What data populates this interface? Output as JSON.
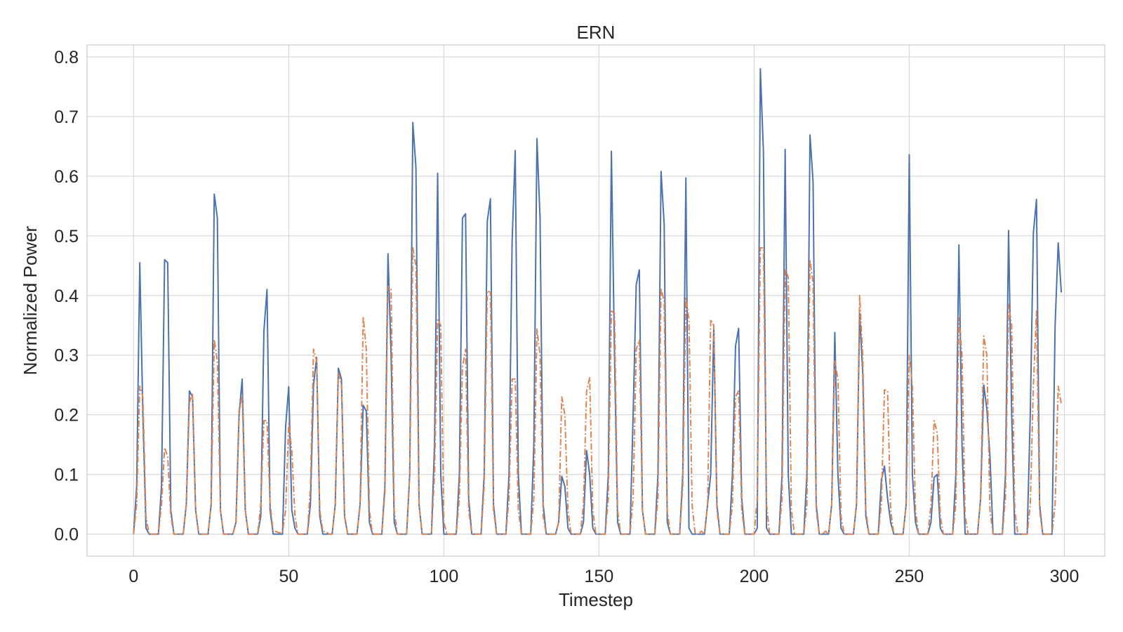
{
  "chart_data": {
    "type": "line",
    "title": "ERN",
    "xlabel": "Timestep",
    "ylabel": "Normalized Power",
    "xlim": [
      -15,
      313
    ],
    "ylim": [
      -0.037,
      0.82
    ],
    "xticks": [
      0,
      50,
      100,
      150,
      200,
      250,
      300
    ],
    "xtick_labels": [
      "0",
      "50",
      "100",
      "150",
      "200",
      "250",
      "300"
    ],
    "yticks": [
      0.0,
      0.1,
      0.2,
      0.3,
      0.4,
      0.5,
      0.6,
      0.7,
      0.8
    ],
    "ytick_labels": [
      "0.0",
      "0.1",
      "0.2",
      "0.3",
      "0.4",
      "0.5",
      "0.6",
      "0.7",
      "0.8"
    ],
    "grid": true,
    "legend": false,
    "colors": {
      "series_1": "#4c72b0",
      "series_2": "#dd8452",
      "grid": "#d9d9d9",
      "axes": "#cccccc"
    },
    "series": [
      {
        "style": "solid",
        "x": [
          0,
          1,
          2,
          3,
          4,
          5,
          6,
          7,
          8,
          9,
          10,
          11,
          12,
          13,
          14,
          15,
          16,
          17,
          18,
          19,
          20,
          21,
          22,
          23,
          24,
          25,
          26,
          27,
          28,
          29,
          30,
          31,
          32,
          33,
          34,
          35,
          36,
          37,
          38,
          39,
          40,
          41,
          42,
          43,
          44,
          45,
          46,
          47,
          48,
          49,
          50,
          51,
          52,
          53,
          54,
          55,
          56,
          57,
          58,
          59,
          60,
          61,
          62,
          63,
          64,
          65,
          66,
          67,
          68,
          69,
          70,
          71,
          72,
          73,
          74,
          75,
          76,
          77,
          78,
          79,
          80,
          81,
          82,
          83,
          84,
          85,
          86,
          87,
          88,
          89,
          90,
          91,
          92,
          93,
          94,
          95,
          96,
          97,
          98,
          99,
          100,
          101,
          102,
          103,
          104,
          105,
          106,
          107,
          108,
          109,
          110,
          111,
          112,
          113,
          114,
          115,
          116,
          117,
          118,
          119,
          120,
          121,
          122,
          123,
          124,
          125,
          126,
          127,
          128,
          129,
          130,
          131,
          132,
          133,
          134,
          135,
          136,
          137,
          138,
          139,
          140,
          141,
          142,
          143,
          144,
          145,
          146,
          147,
          148,
          149,
          150,
          151,
          152,
          153,
          154,
          155,
          156,
          157,
          158,
          159,
          160,
          161,
          162,
          163,
          164,
          165,
          166,
          167,
          168,
          169,
          170,
          171,
          172,
          173,
          174,
          175,
          176,
          177,
          178,
          179,
          180,
          181,
          182,
          183,
          184,
          185,
          186,
          187,
          188,
          189,
          190,
          191,
          192,
          193,
          194,
          195,
          196,
          197,
          198,
          199,
          200,
          201,
          202,
          203,
          204,
          205,
          206,
          207,
          208,
          209,
          210,
          211,
          212,
          213,
          214,
          215,
          216,
          217,
          218,
          219,
          220,
          221,
          222,
          223,
          224,
          225,
          226,
          227,
          228,
          229,
          230,
          231,
          232,
          233,
          234,
          235,
          236,
          237,
          238,
          239,
          240,
          241,
          242,
          243,
          244,
          245,
          246,
          247,
          248,
          249,
          250,
          251,
          252,
          253,
          254,
          255,
          256,
          257,
          258,
          259,
          260,
          261,
          262,
          263,
          264,
          265,
          266,
          267,
          268,
          269,
          270,
          271,
          272,
          273,
          274,
          275,
          276,
          277,
          278,
          279,
          280,
          281,
          282,
          283,
          284,
          285,
          286,
          287,
          288,
          289,
          290,
          291,
          292,
          293,
          294,
          295,
          296,
          297,
          298,
          299
        ],
        "y": [
          0.0,
          0.08,
          0.455,
          0.2,
          0.01,
          0.0,
          0.0,
          0.0,
          0.0,
          0.08,
          0.46,
          0.455,
          0.04,
          0.0,
          0.0,
          0.0,
          0.0,
          0.05,
          0.24,
          0.23,
          0.04,
          0.0,
          0.0,
          0.0,
          0.0,
          0.05,
          0.57,
          0.53,
          0.04,
          0.0,
          0.0,
          0.0,
          0.0,
          0.02,
          0.2,
          0.26,
          0.04,
          0.0,
          0.0,
          0.0,
          0.0,
          0.03,
          0.34,
          0.41,
          0.04,
          0.0,
          0.0,
          0.0,
          0.0,
          0.18,
          0.247,
          0.04,
          0.01,
          0.0,
          0.0,
          0.0,
          0.0,
          0.05,
          0.25,
          0.296,
          0.03,
          0.0,
          0.0,
          0.0,
          0.0,
          0.05,
          0.278,
          0.26,
          0.03,
          0.0,
          0.0,
          0.0,
          0.0,
          0.05,
          0.216,
          0.206,
          0.02,
          0.0,
          0.0,
          0.0,
          0.0,
          0.08,
          0.47,
          0.3,
          0.02,
          0.0,
          0.0,
          0.0,
          0.0,
          0.1,
          0.69,
          0.615,
          0.05,
          0.0,
          0.0,
          0.0,
          0.0,
          0.15,
          0.605,
          0.1,
          0.0,
          0.0,
          0.0,
          0.0,
          0.0,
          0.1,
          0.53,
          0.537,
          0.06,
          0.0,
          0.0,
          0.0,
          0.0,
          0.1,
          0.525,
          0.562,
          0.05,
          0.0,
          0.0,
          0.0,
          0.0,
          0.1,
          0.49,
          0.643,
          0.1,
          0.0,
          0.0,
          0.0,
          0.0,
          0.15,
          0.663,
          0.53,
          0.05,
          0.0,
          0.0,
          0.0,
          0.0,
          0.02,
          0.097,
          0.08,
          0.01,
          0.0,
          0.0,
          0.0,
          0.0,
          0.02,
          0.14,
          0.1,
          0.01,
          0.0,
          0.0,
          0.0,
          0.0,
          0.1,
          0.642,
          0.3,
          0.02,
          0.0,
          0.0,
          0.0,
          0.0,
          0.2,
          0.418,
          0.443,
          0.04,
          0.0,
          0.0,
          0.0,
          0.0,
          0.1,
          0.608,
          0.52,
          0.02,
          0.0,
          0.0,
          0.0,
          0.0,
          0.1,
          0.597,
          0.01,
          0.0,
          0.0,
          0.0,
          0.0,
          0.0,
          0.05,
          0.1,
          0.347,
          0.05,
          0.0,
          0.0,
          0.0,
          0.0,
          0.1,
          0.315,
          0.345,
          0.06,
          0.0,
          0.0,
          0.0,
          0.0,
          0.01,
          0.78,
          0.64,
          0.01,
          0.0,
          0.0,
          0.0,
          0.0,
          0.1,
          0.645,
          0.1,
          0.0,
          0.0,
          0.0,
          0.0,
          0.0,
          0.1,
          0.669,
          0.59,
          0.05,
          0.0,
          0.0,
          0.0,
          0.0,
          0.05,
          0.338,
          0.1,
          0.01,
          0.0,
          0.0,
          0.0,
          0.0,
          0.05,
          0.37,
          0.27,
          0.03,
          0.0,
          0.0,
          0.0,
          0.0,
          0.09,
          0.114,
          0.06,
          0.02,
          0.0,
          0.0,
          0.0,
          0.0,
          0.05,
          0.636,
          0.1,
          0.02,
          0.0,
          0.0,
          0.0,
          0.0,
          0.02,
          0.095,
          0.1,
          0.01,
          0.0,
          0.0,
          0.0,
          0.0,
          0.1,
          0.485,
          0.15,
          0.0,
          0.0,
          0.0,
          0.0,
          0.0,
          0.06,
          0.25,
          0.21,
          0.13,
          0.0,
          0.0,
          0.0,
          0.0,
          0.1,
          0.509,
          0.2,
          0.0,
          0.0,
          0.0,
          0.0,
          0.0,
          0.2,
          0.505,
          0.561,
          0.05,
          0.0,
          0.0,
          0.0,
          0.0,
          0.35,
          0.488,
          0.405
        ]
      },
      {
        "style": "dashdot",
        "x": [
          0,
          1,
          2,
          3,
          4,
          5,
          6,
          7,
          8,
          9,
          10,
          11,
          12,
          13,
          14,
          15,
          16,
          17,
          18,
          19,
          20,
          21,
          22,
          23,
          24,
          25,
          26,
          27,
          28,
          29,
          30,
          31,
          32,
          33,
          34,
          35,
          36,
          37,
          38,
          39,
          40,
          41,
          42,
          43,
          44,
          45,
          46,
          47,
          48,
          49,
          50,
          51,
          52,
          53,
          54,
          55,
          56,
          57,
          58,
          59,
          60,
          61,
          62,
          63,
          64,
          65,
          66,
          67,
          68,
          69,
          70,
          71,
          72,
          73,
          74,
          75,
          76,
          77,
          78,
          79,
          80,
          81,
          82,
          83,
          84,
          85,
          86,
          87,
          88,
          89,
          90,
          91,
          92,
          93,
          94,
          95,
          96,
          97,
          98,
          99,
          100,
          101,
          102,
          103,
          104,
          105,
          106,
          107,
          108,
          109,
          110,
          111,
          112,
          113,
          114,
          115,
          116,
          117,
          118,
          119,
          120,
          121,
          122,
          123,
          124,
          125,
          126,
          127,
          128,
          129,
          130,
          131,
          132,
          133,
          134,
          135,
          136,
          137,
          138,
          139,
          140,
          141,
          142,
          143,
          144,
          145,
          146,
          147,
          148,
          149,
          150,
          151,
          152,
          153,
          154,
          155,
          156,
          157,
          158,
          159,
          160,
          161,
          162,
          163,
          164,
          165,
          166,
          167,
          168,
          169,
          170,
          171,
          172,
          173,
          174,
          175,
          176,
          177,
          178,
          179,
          180,
          181,
          182,
          183,
          184,
          185,
          186,
          187,
          188,
          189,
          190,
          191,
          192,
          193,
          194,
          195,
          196,
          197,
          198,
          199,
          200,
          201,
          202,
          203,
          204,
          205,
          206,
          207,
          208,
          209,
          210,
          211,
          212,
          213,
          214,
          215,
          216,
          217,
          218,
          219,
          220,
          221,
          222,
          223,
          224,
          225,
          226,
          227,
          228,
          229,
          230,
          231,
          232,
          233,
          234,
          235,
          236,
          237,
          238,
          239,
          240,
          241,
          242,
          243,
          244,
          245,
          246,
          247,
          248,
          249,
          250,
          251,
          252,
          253,
          254,
          255,
          256,
          257,
          258,
          259,
          260,
          261,
          262,
          263,
          264,
          265,
          266,
          267,
          268,
          269,
          270,
          271,
          272,
          273,
          274,
          275,
          276,
          277,
          278,
          279,
          280,
          281,
          282,
          283,
          284,
          285,
          286,
          287,
          288,
          289,
          290,
          291,
          292,
          293,
          294,
          295,
          296,
          297,
          298,
          299
        ],
        "y": [
          0.0,
          0.05,
          0.248,
          0.23,
          0.03,
          0.0,
          0.0,
          0.0,
          0.0,
          0.05,
          0.145,
          0.13,
          0.03,
          0.0,
          0.0,
          0.0,
          0.0,
          0.05,
          0.22,
          0.237,
          0.04,
          0.0,
          0.0,
          0.0,
          0.0,
          0.05,
          0.326,
          0.29,
          0.04,
          0.0,
          0.0,
          0.0,
          0.0,
          0.02,
          0.208,
          0.23,
          0.04,
          0.0,
          0.0,
          0.0,
          0.0,
          0.05,
          0.19,
          0.19,
          0.05,
          0.005,
          0.004,
          0.002,
          0.003,
          0.04,
          0.185,
          0.14,
          0.03,
          0.0,
          0.0,
          0.0,
          0.0,
          0.08,
          0.31,
          0.29,
          0.04,
          0.005,
          0.004,
          0.0,
          0.0,
          0.05,
          0.27,
          0.25,
          0.03,
          0.0,
          0.0,
          0.0,
          0.0,
          0.05,
          0.365,
          0.31,
          0.04,
          0.0,
          0.0,
          0.0,
          0.0,
          0.07,
          0.415,
          0.41,
          0.04,
          0.0,
          0.0,
          0.0,
          0.0,
          0.1,
          0.48,
          0.45,
          0.05,
          0.0,
          0.0,
          0.0,
          0.0,
          0.1,
          0.36,
          0.35,
          0.02,
          0.0,
          0.0,
          0.0,
          0.0,
          0.06,
          0.28,
          0.31,
          0.04,
          0.0,
          0.0,
          0.0,
          0.0,
          0.08,
          0.408,
          0.405,
          0.04,
          0.0,
          0.0,
          0.0,
          0.0,
          0.06,
          0.26,
          0.26,
          0.04,
          0.0,
          0.0,
          0.0,
          0.0,
          0.06,
          0.344,
          0.3,
          0.03,
          0.0,
          0.0,
          0.0,
          0.0,
          0.02,
          0.23,
          0.2,
          0.04,
          0.0,
          0.0,
          0.0,
          0.0,
          0.05,
          0.24,
          0.262,
          0.04,
          0.0,
          0.0,
          0.0,
          0.0,
          0.06,
          0.374,
          0.37,
          0.04,
          0.0,
          0.0,
          0.0,
          0.0,
          0.06,
          0.31,
          0.325,
          0.04,
          0.0,
          0.0,
          0.0,
          0.0,
          0.06,
          0.412,
          0.39,
          0.04,
          0.0,
          0.0,
          0.0,
          0.0,
          0.08,
          0.395,
          0.36,
          0.05,
          0.0,
          0.0,
          0.005,
          0.0,
          0.05,
          0.36,
          0.35,
          0.04,
          0.0,
          0.0,
          0.0,
          0.0,
          0.05,
          0.23,
          0.24,
          0.04,
          0.0,
          0.0,
          0.0,
          0.0,
          0.06,
          0.48,
          0.48,
          0.05,
          0.0,
          0.0,
          0.0,
          0.0,
          0.06,
          0.445,
          0.43,
          0.04,
          0.0,
          0.0,
          0.0,
          0.0,
          0.05,
          0.46,
          0.42,
          0.04,
          0.0,
          0.0,
          0.005,
          0.0,
          0.05,
          0.29,
          0.26,
          0.03,
          0.0,
          0.0,
          0.0,
          0.0,
          0.05,
          0.4,
          0.3,
          0.04,
          0.0,
          0.0,
          0.0,
          0.0,
          0.05,
          0.242,
          0.24,
          0.04,
          0.0,
          0.0,
          0.0,
          0.0,
          0.05,
          0.3,
          0.25,
          0.04,
          0.0,
          0.0,
          0.0,
          0.0,
          0.05,
          0.19,
          0.17,
          0.03,
          0.0,
          0.0,
          0.0,
          0.0,
          0.05,
          0.362,
          0.3,
          0.03,
          0.0,
          0.0,
          0.0,
          0.0,
          0.06,
          0.332,
          0.3,
          0.04,
          0.0,
          0.0,
          0.0,
          0.0,
          0.06,
          0.385,
          0.35,
          0.04,
          0.0,
          0.0,
          0.0,
          0.0,
          0.05,
          0.25,
          0.374,
          0.04,
          0.0,
          0.0,
          0.0,
          0.0,
          0.05,
          0.248,
          0.218
        ]
      }
    ]
  }
}
